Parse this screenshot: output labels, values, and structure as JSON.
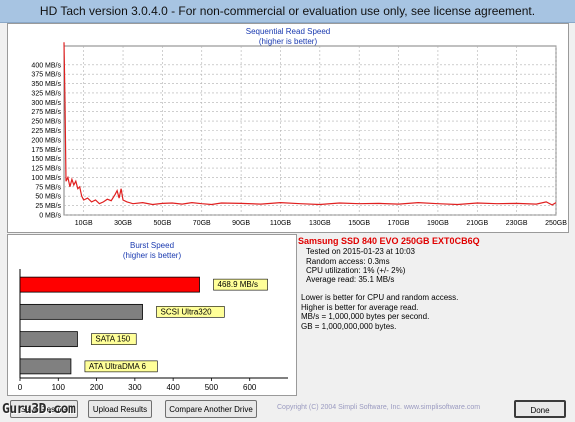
{
  "window": {
    "title": "HD Tach version 3.0.4.0  - For non-commercial or evaluation use only, see license agreement."
  },
  "colors": {
    "read_line": "#e02020",
    "highlight_bar": "#ff0000",
    "other_bar": "#808080",
    "label_bg": "#ffff99",
    "chart_title": "#1a3ab0"
  },
  "read_chart": {
    "title": "Sequential Read Speed",
    "subtitle": "(higher is better)"
  },
  "burst_chart": {
    "title": "Burst Speed",
    "subtitle": "(higher is better)"
  },
  "chart_data": [
    {
      "type": "line",
      "title": "Sequential Read Speed",
      "subtitle": "(higher is better)",
      "ylim": [
        0,
        450
      ],
      "xlim": [
        0,
        250
      ],
      "y_ticks": [
        "0 MB/s",
        "25 MB/s",
        "50 MB/s",
        "75 MB/s",
        "100 MB/s",
        "125 MB/s",
        "150 MB/s",
        "175 MB/s",
        "200 MB/s",
        "225 MB/s",
        "250 MB/s",
        "275 MB/s",
        "300 MB/s",
        "325 MB/s",
        "350 MB/s",
        "375 MB/s",
        "400 MB/s"
      ],
      "y_tick_values": [
        0,
        25,
        50,
        75,
        100,
        125,
        150,
        175,
        200,
        225,
        250,
        275,
        300,
        325,
        350,
        375,
        400
      ],
      "x_ticks": [
        "10GB",
        "30GB",
        "50GB",
        "70GB",
        "90GB",
        "110GB",
        "130GB",
        "150GB",
        "170GB",
        "190GB",
        "210GB",
        "230GB",
        "250GB"
      ],
      "x_tick_values": [
        10,
        30,
        50,
        70,
        90,
        110,
        130,
        150,
        170,
        190,
        210,
        230,
        250
      ],
      "grid": true,
      "x": [
        0,
        0.5,
        1,
        2,
        3,
        4,
        5,
        6,
        7,
        8,
        9,
        10,
        12,
        14,
        16,
        18,
        20,
        22,
        24,
        26,
        27,
        28,
        29,
        30,
        32,
        35,
        40,
        45,
        50,
        55,
        60,
        65,
        70,
        75,
        80,
        90,
        100,
        110,
        120,
        130,
        140,
        150,
        160,
        170,
        180,
        190,
        200,
        210,
        220,
        230,
        240,
        245,
        248,
        250
      ],
      "values": [
        460,
        300,
        90,
        100,
        75,
        95,
        80,
        90,
        70,
        75,
        50,
        40,
        45,
        35,
        40,
        30,
        35,
        42,
        38,
        55,
        65,
        45,
        70,
        40,
        35,
        30,
        33,
        28,
        31,
        32,
        29,
        33,
        30,
        28,
        32,
        31,
        29,
        33,
        30,
        28,
        32,
        30,
        31,
        29,
        33,
        30,
        28,
        32,
        30,
        31,
        29,
        35,
        27,
        33
      ]
    },
    {
      "type": "bar",
      "title": "Burst Speed",
      "subtitle": "(higher is better)",
      "categories": [
        "468.9 MB/s",
        "SCSI Ultra320",
        "SATA 150",
        "ATA UltraDMA 6"
      ],
      "values": [
        468.9,
        320,
        150,
        133
      ],
      "xlim": [
        0,
        700
      ],
      "x_ticks": [
        "0",
        "100",
        "200",
        "300",
        "400",
        "500",
        "600"
      ],
      "x_tick_values": [
        0,
        100,
        200,
        300,
        400,
        500,
        600
      ]
    }
  ],
  "info": {
    "title": "Samsung SSD 840 EVO 250GB EXT0CB6Q",
    "tested": "Tested on 2015-01-23 at 10:03",
    "random_access": "Random access: 0.3ms",
    "cpu": "CPU utilization: 1% (+/- 2%)",
    "avg_read": "Average read: 35.1 MB/s",
    "note1": "Lower is better for CPU and random access.",
    "note2": "Higher is better for average read.",
    "note3": "MB/s = 1,000,000 bytes per second.",
    "note4": "GB = 1,000,000,000 bytes."
  },
  "buttons": {
    "save": "Save Results",
    "upload": "Upload Results",
    "compare": "Compare Another Drive",
    "done": "Done"
  },
  "footer": {
    "copyright": "Copyright (C) 2004 Simpli Software, Inc. www.simplisoftware.com",
    "watermark": "Guru3D.com"
  }
}
